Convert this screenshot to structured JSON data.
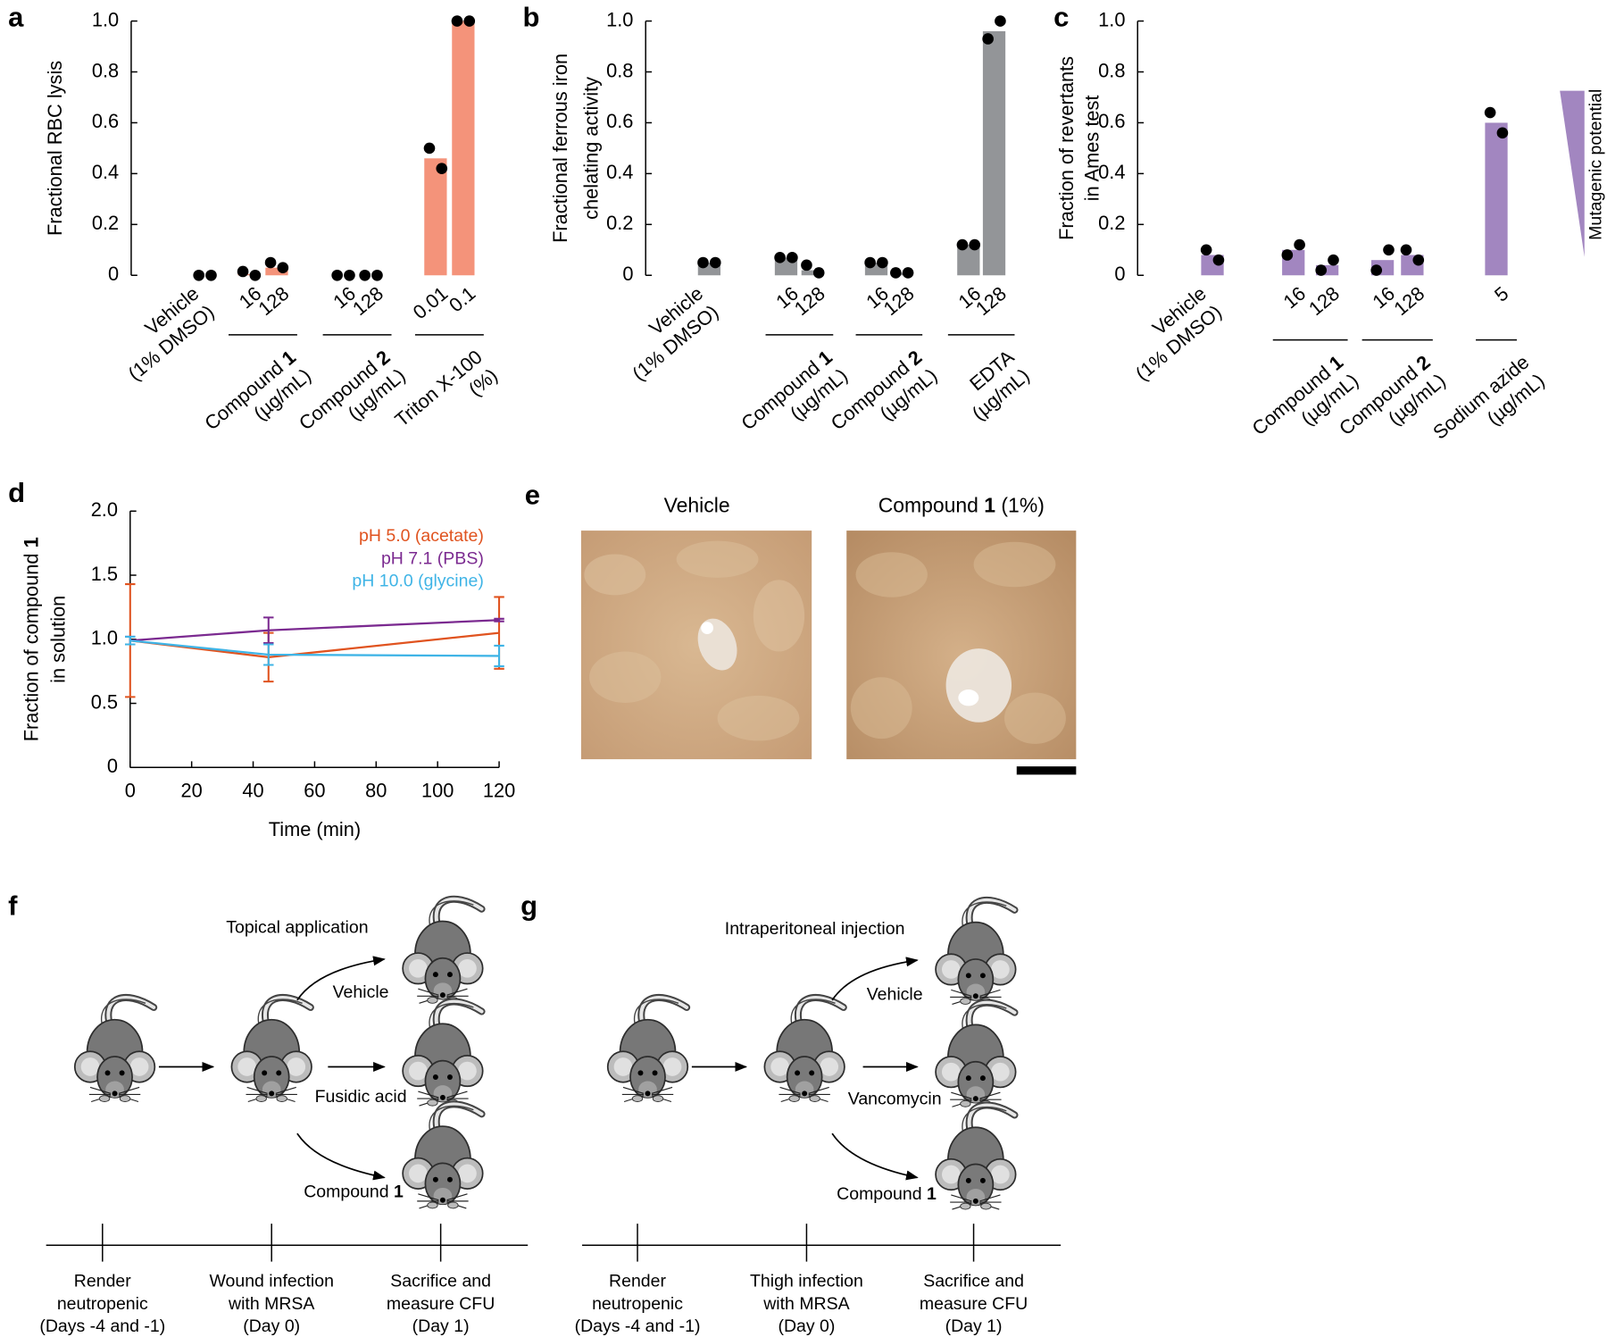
{
  "chart_data": [
    {
      "type": "bar",
      "panel": "a",
      "ylabel": [
        "Fractional RBC lysis"
      ],
      "color": "#f4937a",
      "point_color": "#000000",
      "ylim": [
        0,
        1
      ],
      "yticks": [
        0,
        0.2,
        0.4,
        0.6,
        0.8,
        {
          "value": 1,
          "label": "1.0"
        }
      ],
      "groups": [
        {
          "label": "Vehicle",
          "unit": "(1% DMSO)",
          "categories": [
            null
          ],
          "values": [
            0
          ],
          "points": [
            [
              0,
              0
            ]
          ]
        },
        {
          "label": "Compound 1",
          "unit": "(µg/mL)",
          "categories": [
            "16",
            "128"
          ],
          "values": [
            0.005,
            0.03
          ],
          "points": [
            [
              0.015,
              0
            ],
            [
              0.05,
              0.03
            ]
          ]
        },
        {
          "label": "Compound 2",
          "unit": "(µg/mL)",
          "categories": [
            "16",
            "128"
          ],
          "values": [
            0,
            0
          ],
          "points": [
            [
              0,
              0
            ],
            [
              0,
              0
            ]
          ]
        },
        {
          "label": "Triton X-100",
          "unit": "(%)",
          "categories": [
            "0.01",
            "0.1"
          ],
          "values": [
            0.46,
            1
          ],
          "points": [
            [
              0.5,
              0.42
            ],
            [
              1,
              1
            ]
          ]
        }
      ]
    },
    {
      "type": "bar",
      "panel": "b",
      "ylabel": [
        "Fractional ferrous iron",
        "chelating activity"
      ],
      "color": "#939598",
      "point_color": "#000000",
      "ylim": [
        0,
        1
      ],
      "yticks": [
        0,
        0.2,
        0.4,
        0.6,
        0.8,
        {
          "value": 1,
          "label": "1.0"
        }
      ],
      "groups": [
        {
          "label": "Vehicle",
          "unit": "(1% DMSO)",
          "categories": [
            null
          ],
          "values": [
            0.05
          ],
          "points": [
            [
              0.05,
              0.05
            ]
          ]
        },
        {
          "label": "Compound 1",
          "unit": "(µg/mL)",
          "categories": [
            "16",
            "128"
          ],
          "values": [
            0.07,
            0.02
          ],
          "points": [
            [
              0.07,
              0.07
            ],
            [
              0.04,
              0.01
            ]
          ]
        },
        {
          "label": "Compound 2",
          "unit": "(µg/mL)",
          "categories": [
            "16",
            "128"
          ],
          "values": [
            0.05,
            0.01
          ],
          "points": [
            [
              0.05,
              0.05
            ],
            [
              0.01,
              0.01
            ]
          ]
        },
        {
          "label": "EDTA",
          "unit": "(µg/mL)",
          "categories": [
            "16",
            "128"
          ],
          "values": [
            0.12,
            0.96
          ],
          "points": [
            [
              0.12,
              0.12
            ],
            [
              0.93,
              1
            ]
          ]
        }
      ]
    },
    {
      "type": "bar",
      "panel": "c",
      "ylabel": [
        "Fraction of revertants",
        "in Ames test"
      ],
      "color": "#a286c0",
      "point_color": "#000000",
      "ylim": [
        0,
        1
      ],
      "yticks": [
        0,
        0.2,
        0.4,
        0.6,
        0.8,
        {
          "value": 1,
          "label": "1.0"
        }
      ],
      "annotation": "Mutagenic potential",
      "groups": [
        {
          "label": "Vehicle",
          "unit": "(1% DMSO)",
          "categories": [
            null
          ],
          "values": [
            0.08
          ],
          "points": [
            [
              0.1,
              0.06
            ]
          ]
        },
        {
          "label": "Compound 1",
          "unit": "(µg/mL)",
          "categories": [
            "16",
            "128"
          ],
          "values": [
            0.1,
            0.04
          ],
          "points": [
            [
              0.08,
              0.12
            ],
            [
              0.02,
              0.06
            ]
          ]
        },
        {
          "label": "Compound 2",
          "unit": "(µg/mL)",
          "categories": [
            "16",
            "128"
          ],
          "values": [
            0.06,
            0.08
          ],
          "points": [
            [
              0.02,
              0.1
            ],
            [
              0.1,
              0.06
            ]
          ]
        },
        {
          "label": "Sodium azide",
          "unit": "(µg/mL)",
          "categories": [
            "5"
          ],
          "values": [
            0.6
          ],
          "points": [
            [
              0.64,
              0.56
            ]
          ]
        }
      ]
    },
    {
      "type": "line",
      "panel": "d",
      "ylabel": [
        "Fraction of compound 1",
        "in solution"
      ],
      "xlabel": "Time (min)",
      "x": [
        0,
        45,
        120
      ],
      "xlim": [
        0,
        120
      ],
      "xticks": [
        0,
        20,
        40,
        60,
        80,
        100,
        120
      ],
      "ylim": [
        0,
        2
      ],
      "yticks": [
        0,
        0.5,
        {
          "value": 1,
          "label": "1.0"
        },
        1.5,
        {
          "value": 2,
          "label": "2.0"
        }
      ],
      "legend": "upper right",
      "series": [
        {
          "name": "pH 5.0 (acetate)",
          "color": "#e0531f",
          "values": [
            0.99,
            0.86,
            1.05
          ],
          "errors": [
            0.44,
            0.19,
            0.28
          ]
        },
        {
          "name": "pH 7.1 (PBS)",
          "color": "#7b2a90",
          "values": [
            0.99,
            1.07,
            1.15
          ],
          "errors": [
            0.03,
            0.1,
            0.01
          ]
        },
        {
          "name": "pH 10.0 (glycine)",
          "color": "#3fb4e6",
          "values": [
            0.99,
            0.88,
            0.87
          ],
          "errors": [
            0.03,
            0.08,
            0.08
          ]
        }
      ]
    }
  ],
  "panel_e": {
    "panel": "e",
    "images": [
      {
        "title": "Vehicle"
      },
      {
        "title": "Compound 1 (1%)"
      }
    ]
  },
  "panel_f": {
    "panel": "f",
    "route": "Topical application",
    "treatments": [
      "Vehicle",
      "Fusidic acid",
      "Compound 1"
    ],
    "timeline": [
      [
        "Render",
        "neutropenic",
        "(Days -4 and -1)"
      ],
      [
        "Wound infection",
        "with MRSA",
        "(Day 0)"
      ],
      [
        "Sacrifice and",
        "measure CFU",
        "(Day 1)"
      ]
    ]
  },
  "panel_g": {
    "panel": "g",
    "route": "Intraperitoneal injection",
    "treatments": [
      "Vehicle",
      "Vancomycin",
      "Compound 1"
    ],
    "timeline": [
      [
        "Render",
        "neutropenic",
        "(Days -4 and -1)"
      ],
      [
        "Thigh infection",
        "with MRSA",
        "(Day 0)"
      ],
      [
        "Sacrifice and",
        "measure CFU",
        "(Day 1)"
      ]
    ]
  }
}
